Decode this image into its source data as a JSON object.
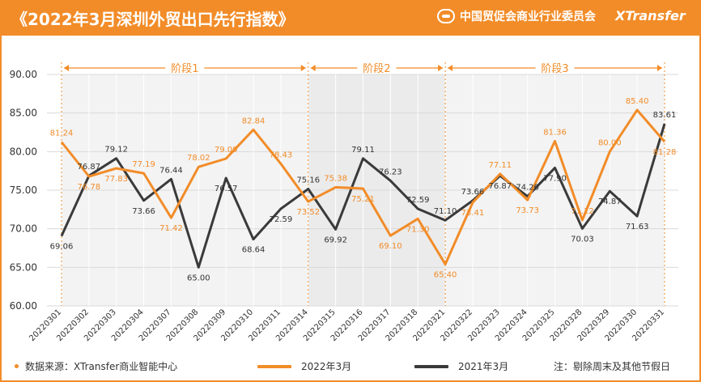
{
  "header": {
    "title": "《2022年3月深圳外贸出口先行指数》",
    "org": "中国贸促会商业行业委员会",
    "brand": "XTransfer"
  },
  "footer": {
    "source": "数据来源：XTransfer商业智能中心",
    "legend_2022": "2022年3月",
    "legend_2021": "2021年3月",
    "note": "注：剔除周末及其他节假日"
  },
  "colors": {
    "accent": "#f28c28",
    "series_2022": "#f28c28",
    "series_2021": "#3a3a3a"
  },
  "chart_data": {
    "type": "line",
    "categories": [
      "20220301",
      "20220302",
      "20220303",
      "20220304",
      "20220307",
      "20220308",
      "20220309",
      "20220310",
      "20220311",
      "20220314",
      "20220315",
      "20220316",
      "20220317",
      "20220318",
      "20220321",
      "20220322",
      "20220323",
      "20220324",
      "20220325",
      "20220328",
      "20220329",
      "20220330",
      "20220331"
    ],
    "series": [
      {
        "name": "2022年3月",
        "values": [
          81.24,
          76.78,
          77.83,
          77.19,
          71.42,
          78.02,
          79.09,
          82.84,
          78.43,
          73.52,
          75.38,
          75.21,
          69.1,
          71.3,
          65.4,
          73.41,
          77.11,
          73.73,
          81.36,
          71.12,
          80.0,
          85.4,
          81.28
        ]
      },
      {
        "name": "2021年3月",
        "values": [
          69.06,
          76.87,
          79.12,
          73.66,
          76.44,
          65.0,
          76.57,
          68.64,
          72.59,
          75.16,
          69.92,
          79.11,
          76.23,
          72.59,
          71.1,
          73.66,
          76.87,
          74.2,
          77.9,
          70.03,
          74.87,
          71.63,
          83.61
        ]
      }
    ],
    "ylim": [
      60,
      90
    ],
    "yticks": [
      "60.00",
      "65.00",
      "70.00",
      "75.00",
      "80.00",
      "85.00",
      "90.00"
    ],
    "stages": [
      {
        "label": "阶段1",
        "start": 0,
        "end": 9
      },
      {
        "label": "阶段2",
        "start": 9,
        "end": 14
      },
      {
        "label": "阶段3",
        "start": 14,
        "end": 22
      }
    ],
    "grid": true,
    "legend": "bottom"
  }
}
